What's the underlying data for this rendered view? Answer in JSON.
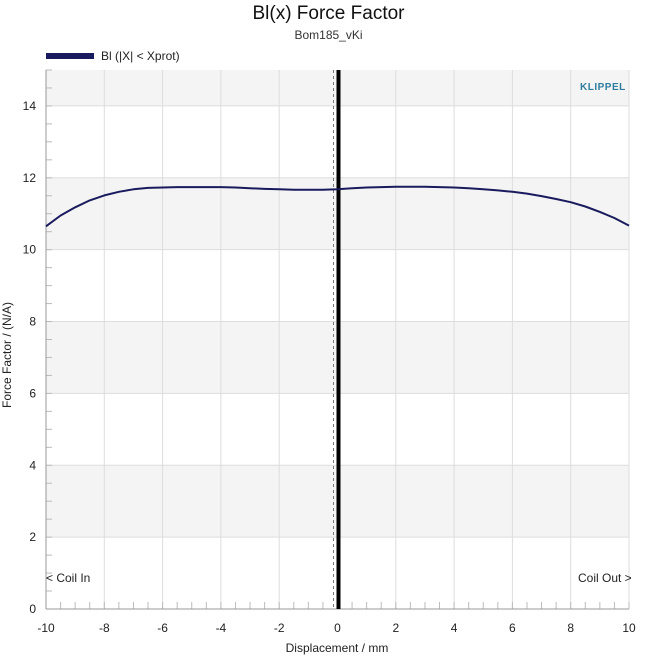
{
  "chart_data": {
    "type": "line",
    "title": "Bl(x) Force Factor",
    "subtitle": "Bom185_vKi",
    "xlabel": "Displacement / mm",
    "ylabel": "Force Factor / (N/A)",
    "xlim": [
      -10,
      10
    ],
    "ylim": [
      0,
      15
    ],
    "x_ticks": [
      -10,
      -8,
      -6,
      -4,
      -2,
      0,
      2,
      4,
      6,
      8,
      10
    ],
    "y_ticks": [
      0,
      2,
      4,
      6,
      8,
      10,
      12,
      14
    ],
    "grid": true,
    "legend_position": "top-left",
    "series": [
      {
        "name": "Bl (|X| < Xprot)",
        "color": "#1a1a5e",
        "x": [
          -10,
          -9.5,
          -9,
          -8.5,
          -8,
          -7.5,
          -7,
          -6.5,
          -6,
          -5.5,
          -5,
          -4.5,
          -4,
          -3.5,
          -3,
          -2.5,
          -2,
          -1.5,
          -1,
          -0.5,
          0,
          0.5,
          1,
          1.5,
          2,
          2.5,
          3,
          3.5,
          4,
          4.5,
          5,
          5.5,
          6,
          6.5,
          7,
          7.5,
          8,
          8.5,
          9,
          9.5,
          10
        ],
        "y": [
          10.65,
          10.95,
          11.18,
          11.37,
          11.51,
          11.61,
          11.68,
          11.72,
          11.73,
          11.74,
          11.74,
          11.74,
          11.74,
          11.73,
          11.71,
          11.69,
          11.68,
          11.67,
          11.67,
          11.67,
          11.68,
          11.71,
          11.73,
          11.74,
          11.75,
          11.75,
          11.75,
          11.74,
          11.73,
          11.71,
          11.68,
          11.65,
          11.61,
          11.56,
          11.49,
          11.41,
          11.32,
          11.2,
          11.05,
          10.88,
          10.67
        ]
      }
    ],
    "annotations": {
      "coil_in": "< Coil In",
      "coil_out": "Coil Out >",
      "logo": "KLIPPEL"
    },
    "colors": {
      "series": "#1a1a5e",
      "band": "#f4f4f4",
      "grid": "#dddddd",
      "rest_line": "#000000"
    }
  }
}
